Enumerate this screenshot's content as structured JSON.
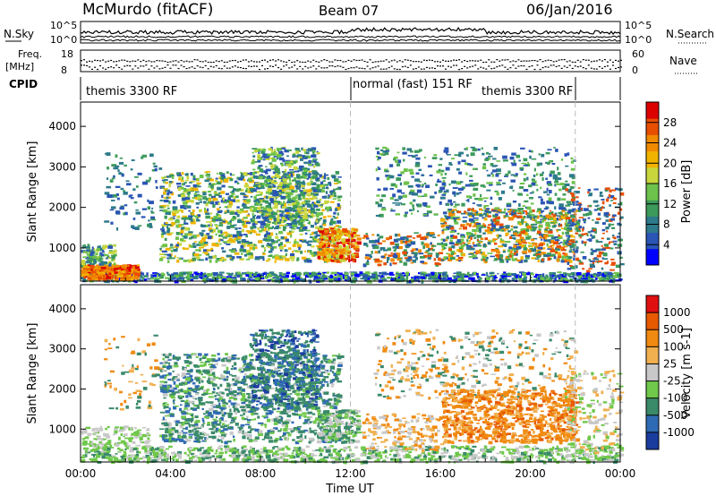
{
  "header": {
    "station": "McMurdo (fitACF)",
    "beam": "Beam 07",
    "date": "06/Jan/2016"
  },
  "top_panels": {
    "nsky_label": "N.Sky",
    "nsky_ticks": [
      "10^5",
      "10^0"
    ],
    "nsearch_label": "N.Search",
    "nsearch_ticks": [
      "10^5",
      "10^0"
    ],
    "freq_label": "Freq.",
    "freq_unit": "[MHz]",
    "freq_ticks": [
      "18",
      "8"
    ],
    "nave_label": "Nave",
    "nave_ticks": [
      "60",
      "0"
    ],
    "cpid_label": "CPID",
    "cpid_segments": [
      {
        "label": "themis 3300 RF",
        "start_hour": 0,
        "end_hour": 12
      },
      {
        "label": "normal (fast) 151 RF",
        "start_hour": 12,
        "end_hour": 22
      },
      {
        "label": "themis 3300 RF",
        "start_hour": 22,
        "end_hour": 24
      }
    ],
    "cpid_extra_label": "themis 3300 RF"
  },
  "chart_data": [
    {
      "type": "heatmap",
      "name": "power",
      "ylabel": "Slant Range [km]",
      "ylim": [
        180,
        4600
      ],
      "yticks": [
        "1000",
        "2000",
        "3000",
        "4000"
      ],
      "xlim_hours": [
        0,
        24
      ],
      "colorbar": {
        "label": "Power [dB]",
        "ticks": [
          "28",
          "24",
          "20",
          "16",
          "12",
          "8",
          "4"
        ],
        "tick_values": [
          28,
          24,
          20,
          16,
          12,
          8,
          4
        ],
        "range": [
          0,
          32
        ],
        "colors": [
          "#0000ff",
          "#2a55b4",
          "#2d7a8a",
          "#3c9a5a",
          "#6cc24a",
          "#c8d63c",
          "#f0b400",
          "#f08a00",
          "#e84e00",
          "#dc0000"
        ]
      }
    },
    {
      "type": "heatmap",
      "name": "velocity",
      "ylabel": "Slant Range [km]",
      "ylim": [
        180,
        4600
      ],
      "yticks": [
        "1000",
        "2000",
        "3000",
        "4000"
      ],
      "xlim_hours": [
        0,
        24
      ],
      "xticks": [
        "00:00",
        "04:00",
        "08:00",
        "12:00",
        "16:00",
        "20:00",
        "00:00"
      ],
      "xlabel": "Time UT",
      "colorbar": {
        "label": "Velocity [m s-1]",
        "ticks": [
          "1000",
          "500",
          "100",
          "25",
          "-25",
          "-100",
          "-500",
          "-1000"
        ],
        "colors": [
          "#1a3c9e",
          "#2f6ab4",
          "#3a8a6a",
          "#6fc84a",
          "#c8c8c8",
          "#f0b050",
          "#f08a10",
          "#e85a00",
          "#e01010"
        ]
      }
    }
  ]
}
